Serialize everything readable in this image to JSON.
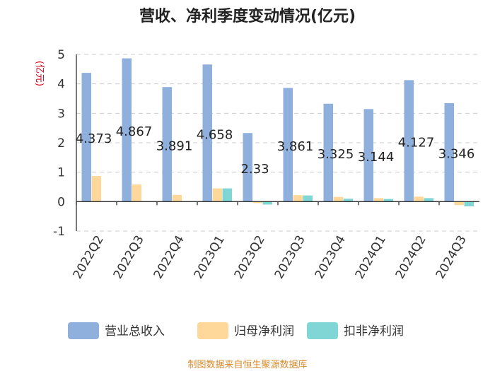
{
  "chart_data": {
    "type": "bar",
    "title": "营收、净利季度变动情况(亿元)",
    "ylabel": "(亿元)",
    "ylim": [
      -1,
      5
    ],
    "yticks": [
      -1,
      0,
      1,
      2,
      3,
      4,
      5
    ],
    "grid": true,
    "legend_position": "bottom",
    "categories": [
      "2022Q2",
      "2022Q3",
      "2022Q4",
      "2023Q1",
      "2023Q2",
      "2023Q3",
      "2023Q4",
      "2024Q1",
      "2024Q2",
      "2024Q3"
    ],
    "series": [
      {
        "name": "营业总收入",
        "color": "#8fb0dd",
        "values": [
          4.373,
          4.867,
          3.891,
          4.658,
          2.33,
          3.861,
          3.325,
          3.144,
          4.127,
          3.346
        ]
      },
      {
        "name": "归母净利润",
        "color": "#fdd89a",
        "values": [
          0.87,
          0.58,
          0.23,
          0.45,
          -0.05,
          0.22,
          0.16,
          0.12,
          0.17,
          -0.12
        ]
      },
      {
        "name": "扣非净利润",
        "color": "#7fd6d4",
        "values": [
          0.0,
          0.0,
          0.0,
          0.45,
          -0.1,
          0.21,
          0.1,
          0.09,
          0.12,
          -0.16
        ]
      }
    ],
    "data_labels": [
      "4.373",
      "4.867",
      "3.891",
      "4.658",
      "2.33",
      "3.861",
      "3.325",
      "3.144",
      "4.127",
      "3.346"
    ],
    "source": "制图数据来自恒生聚源数据库"
  }
}
